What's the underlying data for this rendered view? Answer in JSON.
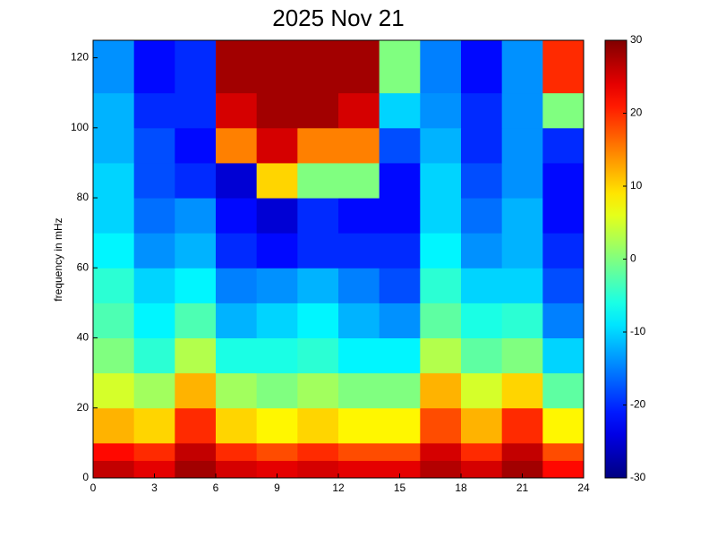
{
  "chart_data": {
    "type": "heatmap",
    "title": "2025 Nov 21",
    "y_label": "frequency in mHz",
    "colormap": "jet",
    "x": [
      0,
      2,
      4,
      6,
      8,
      10,
      12,
      14,
      16,
      18,
      20,
      22,
      24
    ],
    "y": [
      0,
      5,
      10,
      20,
      30,
      40,
      50,
      60,
      70,
      80,
      90,
      100,
      110,
      125
    ],
    "z": [
      [
        26,
        24,
        28,
        25,
        24,
        25,
        24,
        24,
        27,
        25,
        28,
        22
      ],
      [
        22,
        20,
        26,
        20,
        18,
        20,
        18,
        18,
        25,
        20,
        26,
        18
      ],
      [
        12,
        10,
        20,
        10,
        8,
        10,
        8,
        8,
        18,
        12,
        20,
        8
      ],
      [
        5,
        2,
        12,
        2,
        0,
        2,
        0,
        0,
        12,
        5,
        10,
        -2
      ],
      [
        0,
        -5,
        3,
        -6,
        -6,
        -5,
        -8,
        -8,
        3,
        -2,
        0,
        -10
      ],
      [
        -3,
        -8,
        -3,
        -12,
        -10,
        -8,
        -12,
        -14,
        -2,
        -6,
        -5,
        -15
      ],
      [
        -5,
        -10,
        -8,
        -15,
        -14,
        -12,
        -15,
        -18,
        -5,
        -10,
        -10,
        -18
      ],
      [
        -8,
        -14,
        -12,
        -20,
        -22,
        -20,
        -20,
        -20,
        -8,
        -14,
        -12,
        -20
      ],
      [
        -10,
        -16,
        -14,
        -22,
        -25,
        -20,
        -22,
        -22,
        -10,
        -16,
        -12,
        -22
      ],
      [
        -10,
        -18,
        -20,
        -25,
        10,
        0,
        0,
        -22,
        -10,
        -18,
        -14,
        -22
      ],
      [
        -12,
        -18,
        -22,
        15,
        25,
        15,
        15,
        -18,
        -12,
        -20,
        -14,
        -20
      ],
      [
        -12,
        -20,
        -20,
        25,
        28,
        28,
        25,
        -10,
        -14,
        -20,
        -14,
        0
      ],
      [
        -14,
        -22,
        -20,
        28,
        28,
        28,
        28,
        0,
        -15,
        -22,
        -14,
        20
      ]
    ],
    "xlim": [
      0,
      24
    ],
    "xticks": [
      0,
      3,
      6,
      9,
      12,
      15,
      18,
      21,
      24
    ],
    "ylim": [
      0,
      125
    ],
    "yticks": [
      0,
      20,
      40,
      60,
      80,
      100,
      120
    ],
    "clim": [
      -30,
      30
    ],
    "cticks": [
      -30,
      -20,
      -10,
      0,
      10,
      20,
      30
    ]
  }
}
